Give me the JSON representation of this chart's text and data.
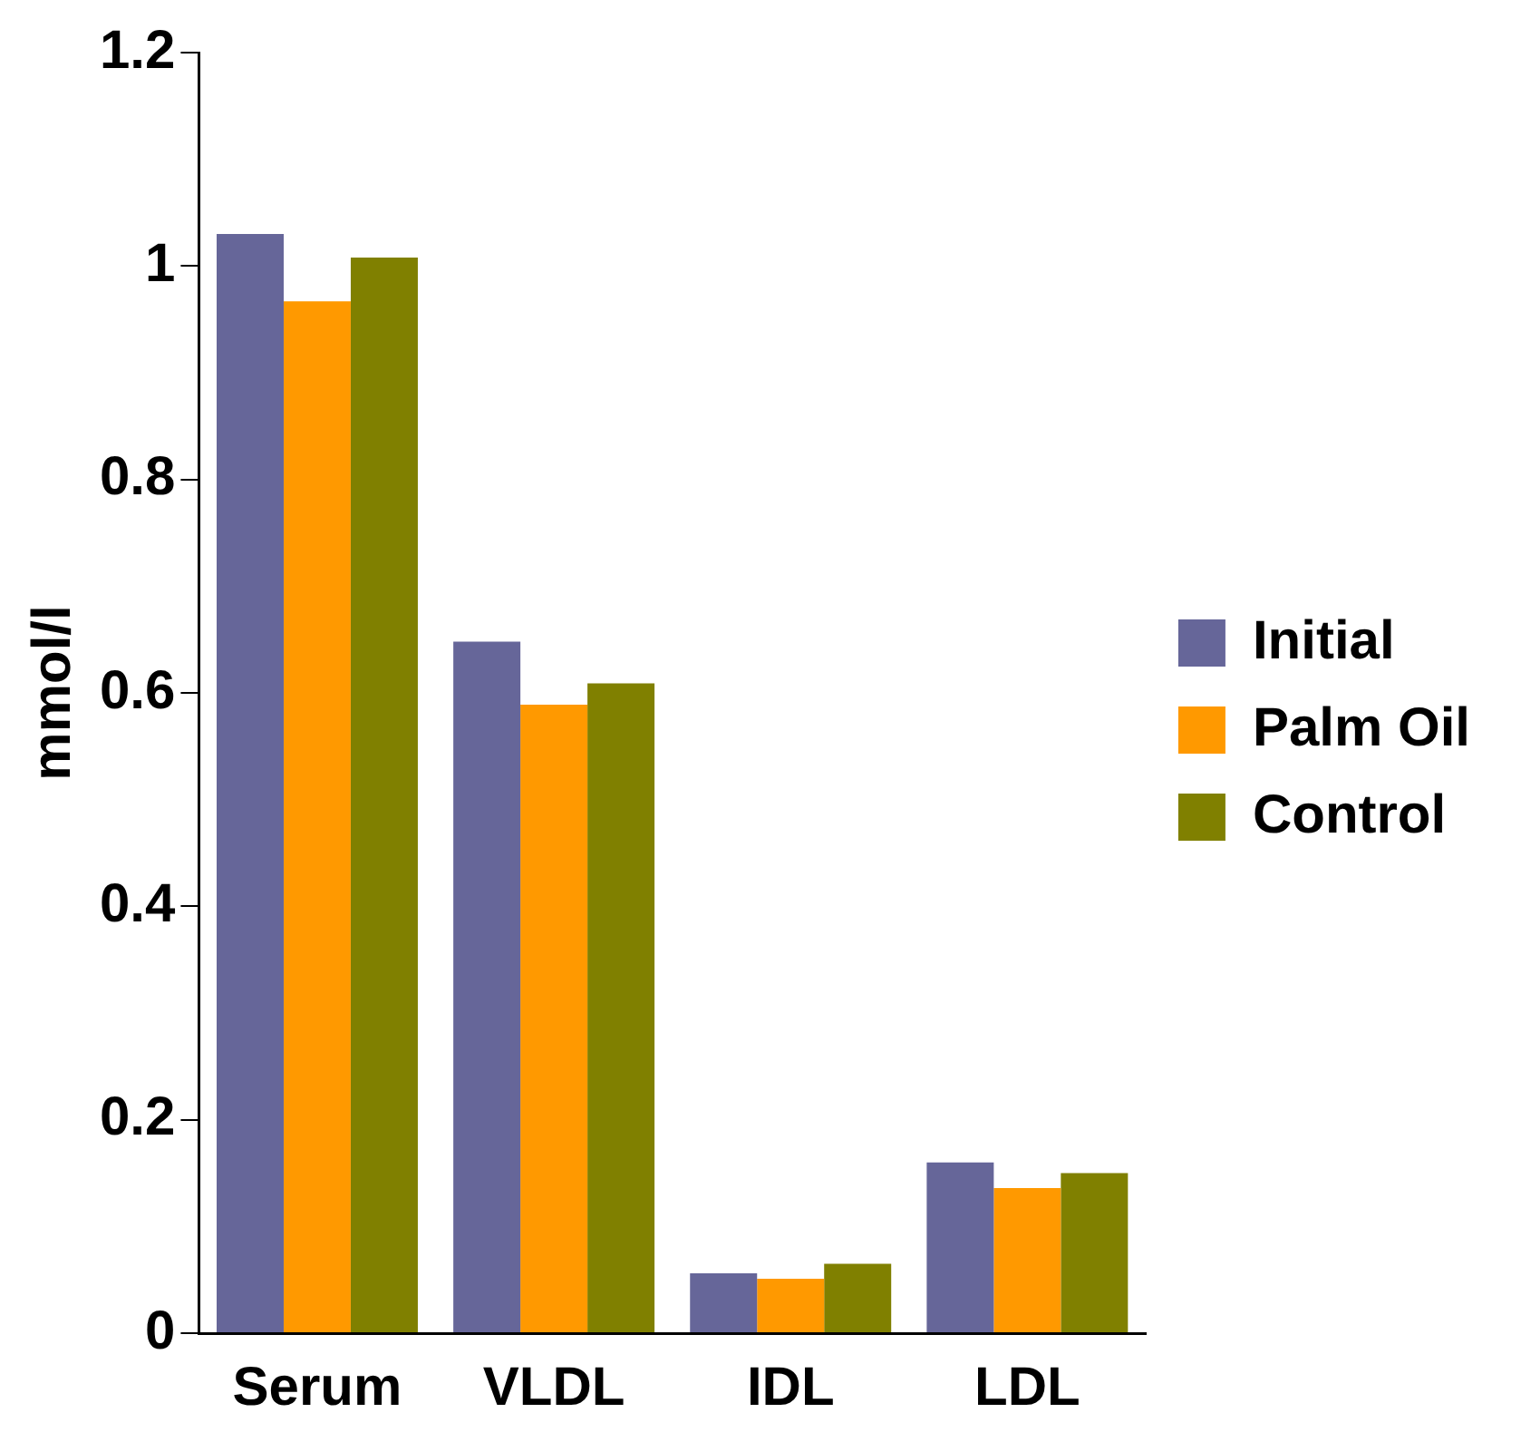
{
  "chart_data": {
    "type": "bar",
    "ylabel": "mmol/l",
    "categories": [
      "Serum",
      "VLDL",
      "IDL",
      "LDL"
    ],
    "series": [
      {
        "name": "Initial",
        "color": "#666699",
        "values": [
          1.03,
          0.648,
          0.056,
          0.16
        ]
      },
      {
        "name": "Palm Oil",
        "color": "#ff9900",
        "values": [
          0.967,
          0.589,
          0.051,
          0.136
        ]
      },
      {
        "name": "Control",
        "color": "#808000",
        "values": [
          1.008,
          0.609,
          0.065,
          0.15
        ]
      }
    ],
    "ylim": [
      0,
      1.2
    ],
    "yticks": [
      0,
      0.2,
      0.4,
      0.6,
      0.8,
      1,
      1.2
    ],
    "grid": false,
    "legend": "right"
  }
}
